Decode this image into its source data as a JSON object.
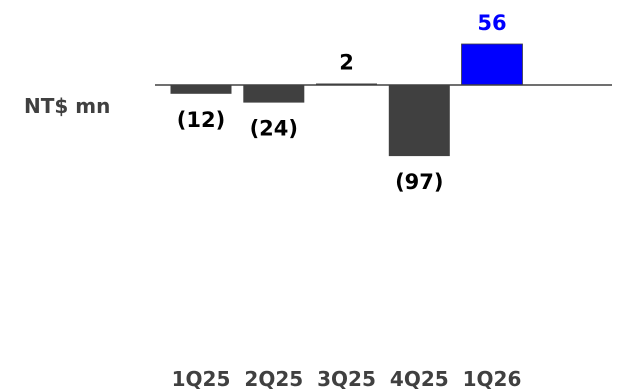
{
  "chart_data": {
    "type": "bar",
    "unit_label": "NT$ mn",
    "categories": [
      "1Q25",
      "2Q25",
      "3Q25",
      "4Q25",
      "1Q26"
    ],
    "values": [
      -12,
      -24,
      2,
      -97,
      56
    ],
    "value_labels": [
      "(12)",
      "(24)",
      "2",
      "(97)",
      "56"
    ],
    "colors": {
      "default_bar": "#404040",
      "highlight_bar": "#0000ff",
      "highlight_label": "#0000ff",
      "default_label": "#000000",
      "baseline": "#404040"
    },
    "highlight_index": 4,
    "grid": false,
    "legend": "none"
  }
}
